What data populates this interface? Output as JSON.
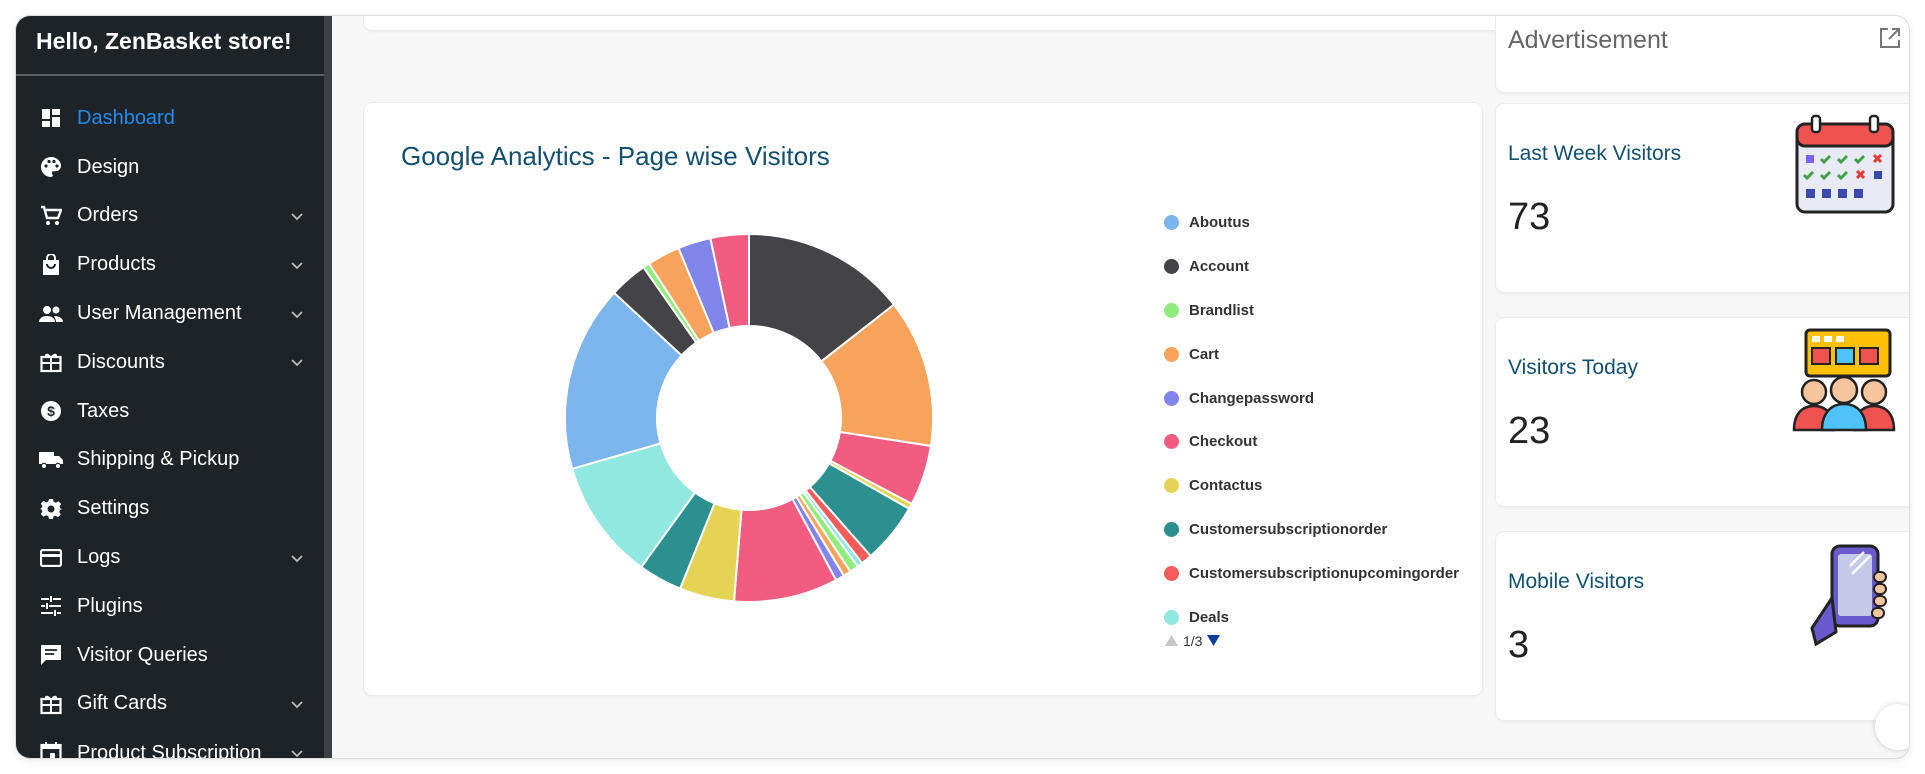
{
  "sidebar": {
    "greeting": "Hello, ZenBasket store!",
    "items": [
      {
        "label": "Dashboard",
        "icon": "dashboard-icon",
        "active": true,
        "expandable": false
      },
      {
        "label": "Design",
        "icon": "palette-icon",
        "expandable": false
      },
      {
        "label": "Orders",
        "icon": "cart-icon",
        "expandable": true
      },
      {
        "label": "Products",
        "icon": "shopping-bag-icon",
        "expandable": true
      },
      {
        "label": "User Management",
        "icon": "users-icon",
        "expandable": true
      },
      {
        "label": "Discounts",
        "icon": "gift-box-icon",
        "expandable": true
      },
      {
        "label": "Taxes",
        "icon": "dollar-circle-icon",
        "expandable": false
      },
      {
        "label": "Shipping & Pickup",
        "icon": "truck-icon",
        "expandable": false
      },
      {
        "label": "Settings",
        "icon": "gear-icon",
        "expandable": false
      },
      {
        "label": "Logs",
        "icon": "credit-card-icon",
        "expandable": true
      },
      {
        "label": "Plugins",
        "icon": "sliders-icon",
        "expandable": false
      },
      {
        "label": "Visitor Queries",
        "icon": "message-icon",
        "expandable": false
      },
      {
        "label": "Gift Cards",
        "icon": "gift-card-icon",
        "expandable": true
      },
      {
        "label": "Product Subscription",
        "icon": "calendar-icon",
        "expandable": true
      }
    ]
  },
  "analytics": {
    "title": "Google Analytics - Page wise Visitors",
    "legend": [
      {
        "label": "Aboutus",
        "color": "#7cb4ec"
      },
      {
        "label": "Account",
        "color": "#434348"
      },
      {
        "label": "Brandlist",
        "color": "#90ed7d"
      },
      {
        "label": "Cart",
        "color": "#f7a35c"
      },
      {
        "label": "Changepassword",
        "color": "#8085e9"
      },
      {
        "label": "Checkout",
        "color": "#f15c80"
      },
      {
        "label": "Contactus",
        "color": "#e4d354"
      },
      {
        "label": "Customersubscriptionorder",
        "color": "#2b908f"
      },
      {
        "label": "Customersubscriptionupcomingorder",
        "color": "#f45b5b"
      },
      {
        "label": "Deals",
        "color": "#91e8e1"
      }
    ],
    "pager": "1/3"
  },
  "chart_data": {
    "type": "pie",
    "donut": true,
    "title": "Google Analytics - Page wise Visitors",
    "slices": [
      {
        "color": "#434348",
        "value": 15.0
      },
      {
        "color": "#f7a35c",
        "value": 13.5
      },
      {
        "color": "#f15c80",
        "value": 5.5
      },
      {
        "color": "#e4d354",
        "value": 0.5
      },
      {
        "color": "#2b908f",
        "value": 5.5
      },
      {
        "color": "#f45b5b",
        "value": 1.0
      },
      {
        "color": "#91e8e1",
        "value": 0.5
      },
      {
        "color": "#90ed7d",
        "value": 0.8
      },
      {
        "color": "#f7a35c",
        "value": 0.7
      },
      {
        "color": "#8085e9",
        "value": 0.8
      },
      {
        "color": "#f15c80",
        "value": 9.5
      },
      {
        "color": "#e4d354",
        "value": 5.0
      },
      {
        "color": "#2b908f",
        "value": 4.0
      },
      {
        "color": "#91e8e1",
        "value": 11.0
      },
      {
        "color": "#7cb4ec",
        "value": 17.0
      },
      {
        "color": "#434348",
        "value": 3.5
      },
      {
        "color": "#90ed7d",
        "value": 0.6
      },
      {
        "color": "#f7a35c",
        "value": 3.0
      },
      {
        "color": "#8085e9",
        "value": 3.0
      },
      {
        "color": "#f15c80",
        "value": 3.5
      }
    ]
  },
  "advertisement": {
    "label": "Advertisement",
    "icon": "external-link-icon"
  },
  "stats": [
    {
      "title": "Last Week Visitors",
      "value": "73",
      "icon": "calendar-checklist-icon"
    },
    {
      "title": "Visitors Today",
      "value": "23",
      "icon": "visitor-group-icon"
    },
    {
      "title": "Mobile Visitors",
      "value": "3",
      "icon": "mobile-hand-icon"
    }
  ]
}
